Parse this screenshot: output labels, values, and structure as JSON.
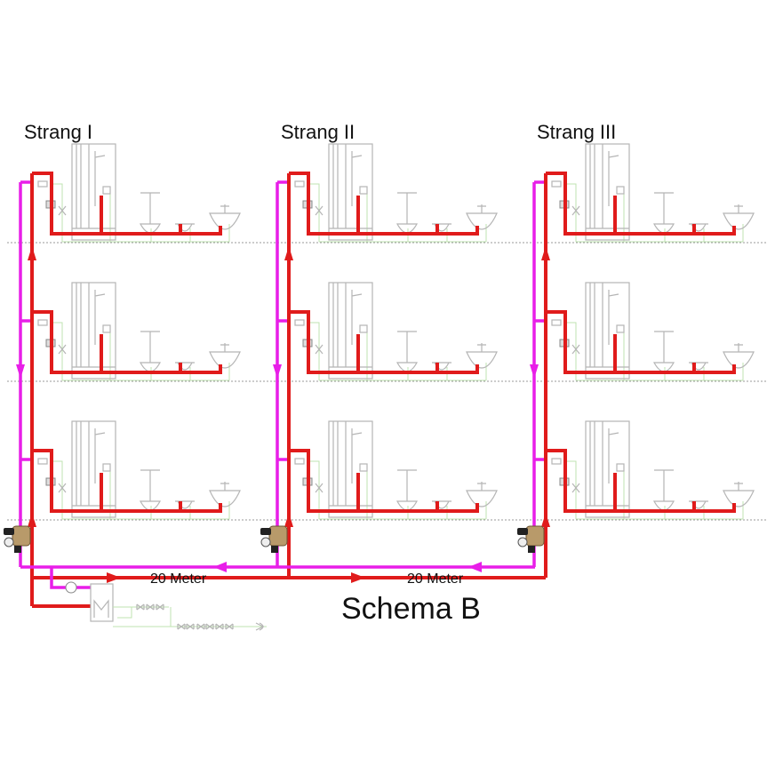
{
  "title": "Schema B",
  "strands": [
    {
      "label": "Strang I"
    },
    {
      "label": "Strang II"
    },
    {
      "label": "Strang III"
    }
  ],
  "distance_labels": [
    "20 Meter",
    "20 Meter"
  ],
  "floors": 3,
  "colors": {
    "hot_water": "#e01b1b",
    "circulation": "#e81ee8",
    "fixture": "#b5b5b5",
    "cold_line": "#bfe3b0",
    "floor_line": "#9a9a9a"
  }
}
